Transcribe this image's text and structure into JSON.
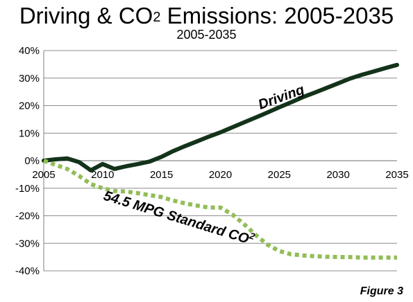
{
  "figure_label": "Figure 3",
  "chart_data": {
    "type": "line",
    "title": "Driving & CO",
    "title_sup": "2",
    "title_suffix": " Emissions: 2005-2035",
    "subtitle": "2005-2035",
    "xlabel": "",
    "ylabel": "",
    "xlim": [
      2005,
      2035
    ],
    "ylim": [
      -40,
      40
    ],
    "y_ticks": [
      "40%",
      "30%",
      "20%",
      "10%",
      "0%",
      "-10%",
      "-20%",
      "-30%",
      "-40%"
    ],
    "y_tick_values": [
      40,
      30,
      20,
      10,
      0,
      -10,
      -20,
      -30,
      -40
    ],
    "x_ticks": [
      "2005",
      "2010",
      "2015",
      "2020",
      "2025",
      "2030",
      "2035"
    ],
    "x_tick_values": [
      2005,
      2010,
      2015,
      2020,
      2025,
      2030,
      2035
    ],
    "grid": true,
    "series": [
      {
        "name": "Driving",
        "sup": "",
        "color": "#13331a",
        "style": "solid",
        "x": [
          2005,
          2006,
          2007,
          2008,
          2009,
          2010,
          2011,
          2012,
          2013,
          2014,
          2015,
          2016,
          2017,
          2018,
          2019,
          2020,
          2021,
          2022,
          2023,
          2024,
          2025,
          2026,
          2027,
          2028,
          2029,
          2030,
          2031,
          2032,
          2033,
          2034,
          2035
        ],
        "y": [
          0,
          0.5,
          0.8,
          -0.5,
          -3.5,
          -1.2,
          -3,
          -2,
          -1.2,
          -0.3,
          1.4,
          3.5,
          5.3,
          7,
          8.7,
          10.3,
          12.1,
          13.9,
          15.7,
          17.5,
          19.4,
          21.2,
          23.1,
          24.7,
          26.4,
          28.1,
          29.8,
          31.2,
          32.4,
          33.6,
          34.8
        ]
      },
      {
        "name": "54.5 MPG Standard CO",
        "sup": "2",
        "color": "#92bd57",
        "style": "dotted",
        "x": [
          2005,
          2006,
          2007,
          2008,
          2009,
          2010,
          2011,
          2012,
          2013,
          2014,
          2015,
          2016,
          2017,
          2018,
          2019,
          2020,
          2021,
          2022,
          2023,
          2024,
          2025,
          2026,
          2027,
          2028,
          2029,
          2030,
          2031,
          2032,
          2033,
          2034,
          2035
        ],
        "y": [
          0,
          -1.5,
          -3,
          -5.5,
          -8.5,
          -10,
          -11,
          -11.2,
          -11.8,
          -12.5,
          -13.2,
          -14.5,
          -15.5,
          -16.3,
          -17,
          -17,
          -19.5,
          -23,
          -27,
          -30.5,
          -32.8,
          -34,
          -34.4,
          -34.7,
          -34.9,
          -35,
          -35,
          -35.2,
          -35.2,
          -35.2,
          -35.2
        ]
      }
    ]
  }
}
